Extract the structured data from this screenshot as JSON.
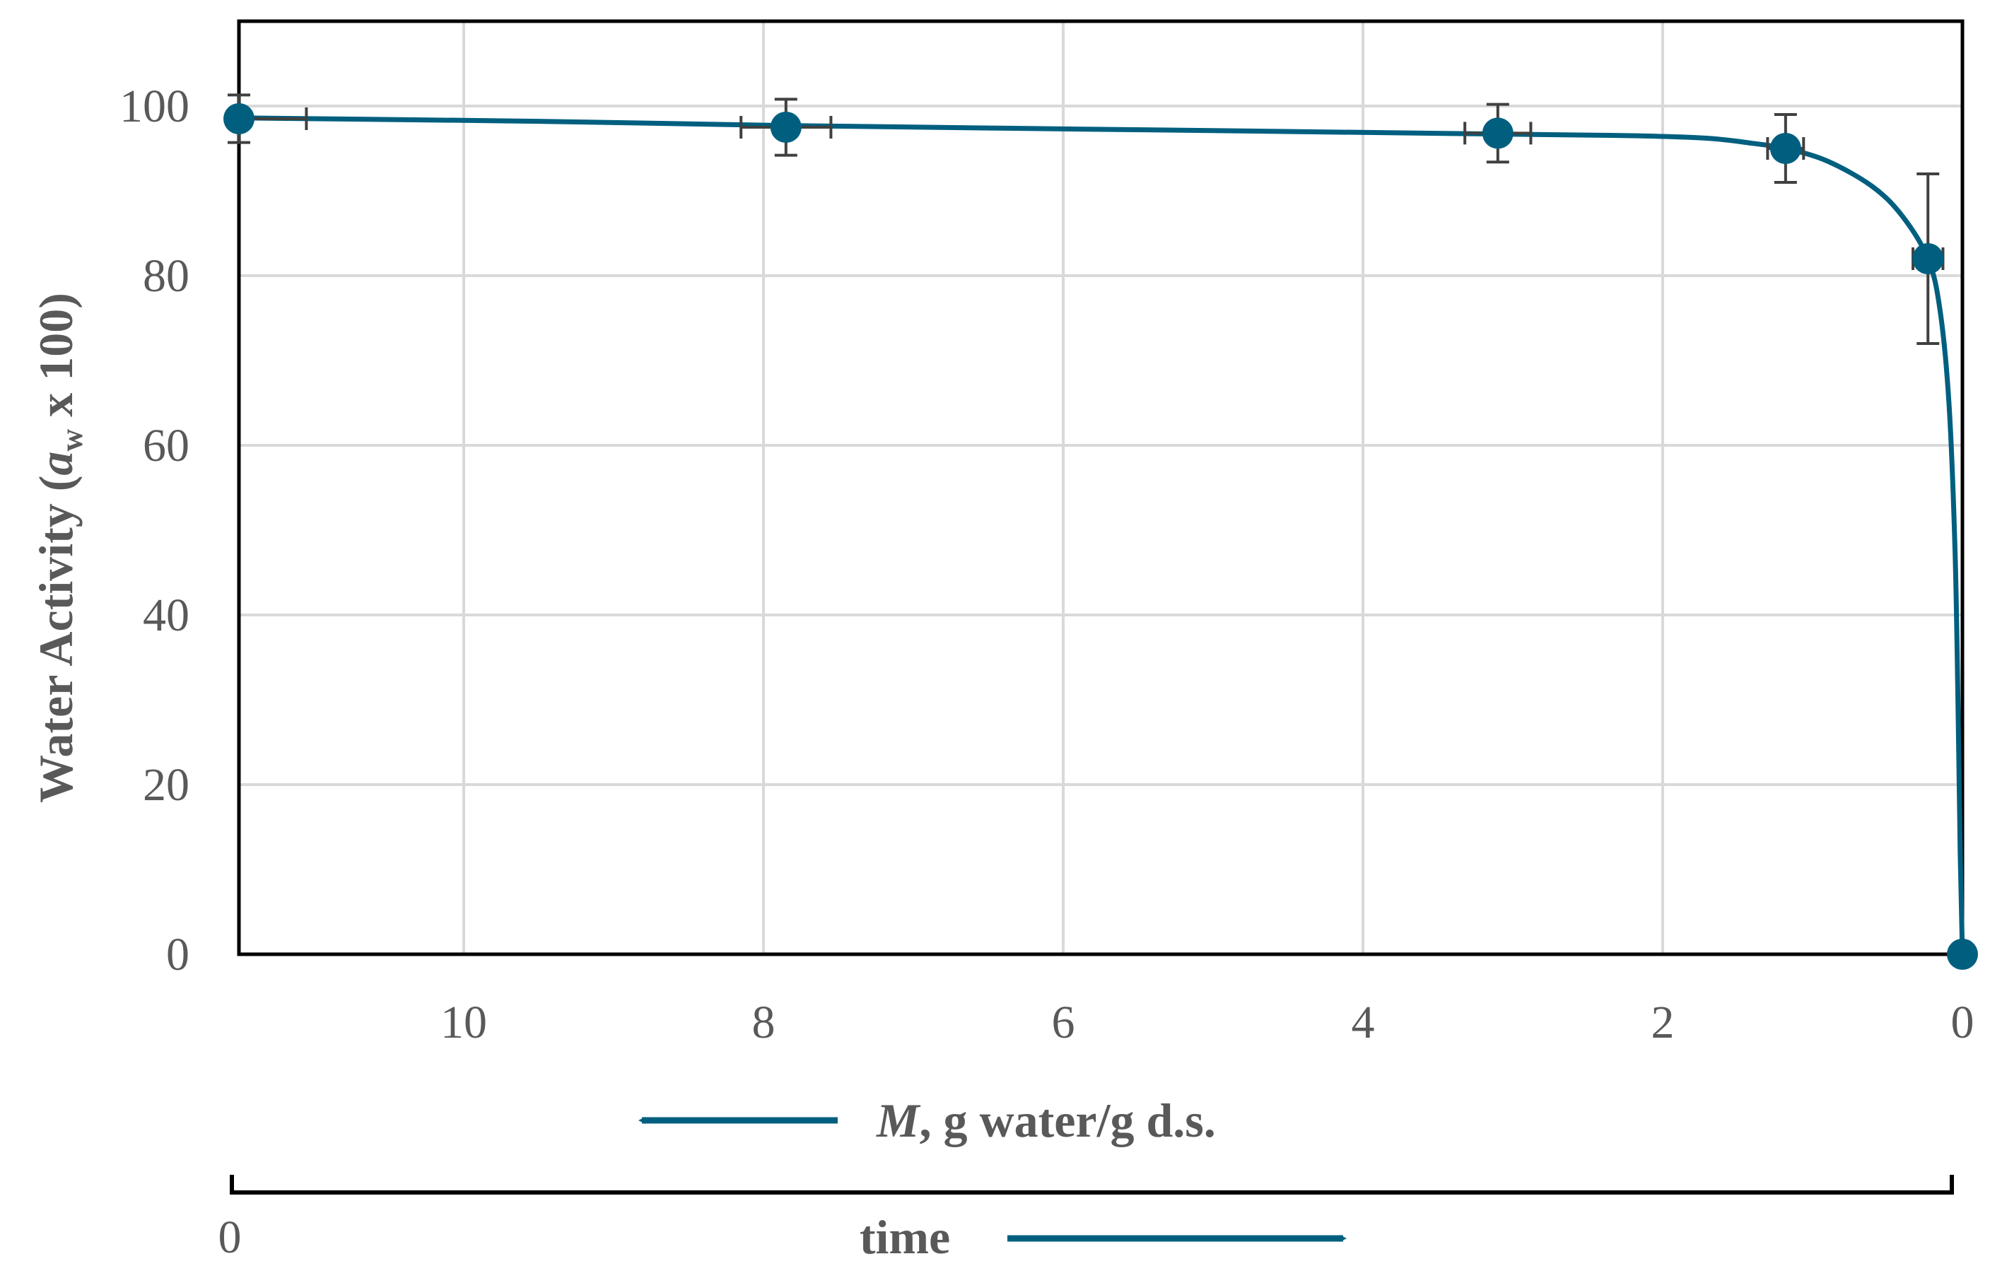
{
  "chart_data": {
    "type": "scatter",
    "title": "",
    "ylabel": {
      "pre": "Water Activity (",
      "var": "a",
      "sub": "w",
      "post": " x 100)"
    },
    "xlabel": {
      "var": "M",
      "rest": ", g water/g d.s."
    },
    "xlim": [
      11.5,
      0
    ],
    "ylim": [
      0,
      100
    ],
    "x_reversed": true,
    "grid": true,
    "x_ticks": [
      10,
      8,
      6,
      4,
      2,
      0
    ],
    "y_ticks": [
      0,
      20,
      40,
      60,
      80,
      100
    ],
    "series": [
      {
        "color": "#005F7F",
        "points": [
          {
            "x": 11.5,
            "y": 98.5,
            "yerr": 2.8,
            "xerr": 0.45
          },
          {
            "x": 7.85,
            "y": 97.5,
            "yerr": 3.3,
            "xerr": 0.3
          },
          {
            "x": 3.1,
            "y": 96.8,
            "yerr": 3.4,
            "xerr": 0.22
          },
          {
            "x": 1.18,
            "y": 95.0,
            "yerr": 4.0,
            "xerr": 0.12
          },
          {
            "x": 0.23,
            "y": 82.0,
            "yerr": 10.0,
            "xerr": 0.1
          },
          {
            "x": 0.0,
            "y": 0.0,
            "yerr": 0,
            "xerr": 0
          }
        ],
        "curve": [
          [
            11.5,
            98.6
          ],
          [
            9.5,
            98.2
          ],
          [
            7.85,
            97.7
          ],
          [
            5,
            97.1
          ],
          [
            3.1,
            96.7
          ],
          [
            2.2,
            96.5
          ],
          [
            1.7,
            96.2
          ],
          [
            1.4,
            95.6
          ],
          [
            1.18,
            95.0
          ],
          [
            0.9,
            93.5
          ],
          [
            0.6,
            90.5
          ],
          [
            0.4,
            87.0
          ],
          [
            0.23,
            82.0
          ],
          [
            0.15,
            76.0
          ],
          [
            0.09,
            65.0
          ],
          [
            0.05,
            48.0
          ],
          [
            0.03,
            30.0
          ],
          [
            0.015,
            12.0
          ],
          [
            0.0,
            0.0
          ]
        ]
      }
    ],
    "time_axis": {
      "start_label": "0",
      "label": "time"
    }
  },
  "colors": {
    "accent": "#005F7F",
    "grid": "#D9D9D9",
    "text": "#595959"
  }
}
